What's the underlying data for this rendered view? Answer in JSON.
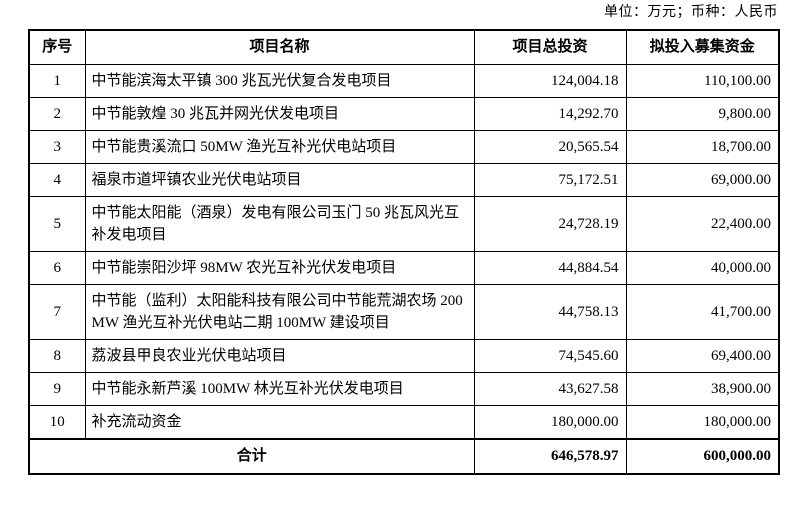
{
  "meta": {
    "unit_note": "单位：万元；币种：人民币"
  },
  "table": {
    "headers": {
      "no": "序号",
      "name": "项目名称",
      "total_investment": "项目总投资",
      "raised_funds": "拟投入募集资金"
    },
    "rows": [
      {
        "no": "1",
        "name": "中节能滨海太平镇 300 兆瓦光伏复合发电项目",
        "total": "124,004.18",
        "raised": "110,100.00"
      },
      {
        "no": "2",
        "name": "中节能敦煌 30 兆瓦并网光伏发电项目",
        "total": "14,292.70",
        "raised": "9,800.00"
      },
      {
        "no": "3",
        "name": "中节能贵溪流口 50MW 渔光互补光伏电站项目",
        "total": "20,565.54",
        "raised": "18,700.00"
      },
      {
        "no": "4",
        "name": "福泉市道坪镇农业光伏电站项目",
        "total": "75,172.51",
        "raised": "69,000.00"
      },
      {
        "no": "5",
        "name": "中节能太阳能（酒泉）发电有限公司玉门 50 兆瓦风光互补发电项目",
        "total": "24,728.19",
        "raised": "22,400.00"
      },
      {
        "no": "6",
        "name": "中节能崇阳沙坪 98MW 农光互补光伏发电项目",
        "total": "44,884.54",
        "raised": "40,000.00"
      },
      {
        "no": "7",
        "name": "中节能（监利）太阳能科技有限公司中节能荒湖农场 200MW 渔光互补光伏电站二期 100MW 建设项目",
        "total": "44,758.13",
        "raised": "41,700.00"
      },
      {
        "no": "8",
        "name": "荔波县甲良农业光伏电站项目",
        "total": "74,545.60",
        "raised": "69,400.00"
      },
      {
        "no": "9",
        "name": "中节能永新芦溪 100MW 林光互补光伏发电项目",
        "total": "43,627.58",
        "raised": "38,900.00"
      },
      {
        "no": "10",
        "name": "补充流动资金",
        "total": "180,000.00",
        "raised": "180,000.00"
      }
    ],
    "total_row": {
      "label": "合计",
      "total": "646,578.97",
      "raised": "600,000.00"
    }
  }
}
